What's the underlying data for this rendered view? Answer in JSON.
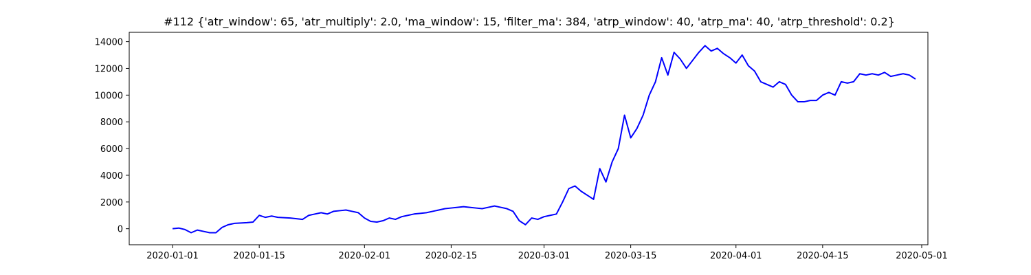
{
  "chart_data": {
    "type": "line",
    "title": "#112 {'atr_window': 65, 'atr_multiply': 2.0, 'ma_window': 15, 'filter_ma': 384, 'atrp_window': 40, 'atrp_ma': 40, 'atrp_threshold': 0.2}",
    "xlabel": "",
    "ylabel": "",
    "xlim": [
      "2019-12-25",
      "2020-05-02"
    ],
    "ylim": [
      -1200,
      14700
    ],
    "x_ticks": [
      "2020-01-01",
      "2020-01-15",
      "2020-02-01",
      "2020-02-15",
      "2020-03-01",
      "2020-03-15",
      "2020-04-01",
      "2020-04-15",
      "2020-05-01"
    ],
    "y_ticks": [
      0,
      2000,
      4000,
      6000,
      8000,
      10000,
      12000,
      14000
    ],
    "grid": false,
    "legend": "none",
    "series": [
      {
        "color": "#0000ff",
        "x": [
          "2020-01-01",
          "2020-01-02",
          "2020-01-03",
          "2020-01-04",
          "2020-01-05",
          "2020-01-06",
          "2020-01-07",
          "2020-01-08",
          "2020-01-09",
          "2020-01-10",
          "2020-01-11",
          "2020-01-13",
          "2020-01-14",
          "2020-01-15",
          "2020-01-16",
          "2020-01-17",
          "2020-01-18",
          "2020-01-20",
          "2020-01-21",
          "2020-01-22",
          "2020-01-23",
          "2020-01-24",
          "2020-01-25",
          "2020-01-26",
          "2020-01-27",
          "2020-01-28",
          "2020-01-29",
          "2020-01-30",
          "2020-01-31",
          "2020-02-01",
          "2020-02-02",
          "2020-02-03",
          "2020-02-04",
          "2020-02-05",
          "2020-02-06",
          "2020-02-07",
          "2020-02-08",
          "2020-02-09",
          "2020-02-10",
          "2020-02-11",
          "2020-02-12",
          "2020-02-13",
          "2020-02-14",
          "2020-02-15",
          "2020-02-16",
          "2020-02-17",
          "2020-02-18",
          "2020-02-19",
          "2020-02-20",
          "2020-02-21",
          "2020-02-22",
          "2020-02-23",
          "2020-02-24",
          "2020-02-25",
          "2020-02-26",
          "2020-02-27",
          "2020-02-28",
          "2020-02-29",
          "2020-03-01",
          "2020-03-02",
          "2020-03-03",
          "2020-03-04",
          "2020-03-05",
          "2020-03-06",
          "2020-03-07",
          "2020-03-08",
          "2020-03-09",
          "2020-03-10",
          "2020-03-11",
          "2020-03-12",
          "2020-03-13",
          "2020-03-14",
          "2020-03-15",
          "2020-03-16",
          "2020-03-17",
          "2020-03-18",
          "2020-03-19",
          "2020-03-20",
          "2020-03-21",
          "2020-03-22",
          "2020-03-23",
          "2020-03-24",
          "2020-03-25",
          "2020-03-26",
          "2020-03-27",
          "2020-03-28",
          "2020-03-29",
          "2020-03-30",
          "2020-03-31",
          "2020-04-01",
          "2020-04-02",
          "2020-04-03",
          "2020-04-04",
          "2020-04-05",
          "2020-04-06",
          "2020-04-07",
          "2020-04-08",
          "2020-04-09",
          "2020-04-10",
          "2020-04-11",
          "2020-04-12",
          "2020-04-13",
          "2020-04-14",
          "2020-04-15",
          "2020-04-16",
          "2020-04-17",
          "2020-04-18",
          "2020-04-19",
          "2020-04-20",
          "2020-04-21",
          "2020-04-22",
          "2020-04-23",
          "2020-04-24",
          "2020-04-25",
          "2020-04-26",
          "2020-04-27",
          "2020-04-28",
          "2020-04-29",
          "2020-04-30"
        ],
        "values": [
          0,
          50,
          -60,
          -300,
          -100,
          -200,
          -300,
          -300,
          100,
          300,
          400,
          450,
          500,
          1000,
          850,
          950,
          850,
          800,
          750,
          700,
          1000,
          1100,
          1200,
          1100,
          1300,
          1350,
          1400,
          1300,
          1200,
          800,
          550,
          500,
          600,
          800,
          700,
          900,
          1000,
          1100,
          1150,
          1200,
          1300,
          1400,
          1500,
          1550,
          1600,
          1650,
          1600,
          1550,
          1500,
          1600,
          1700,
          1600,
          1500,
          1300,
          600,
          300,
          800,
          700,
          900,
          1000,
          1100,
          2000,
          3000,
          3200,
          2800,
          2500,
          2200,
          4500,
          3500,
          5000,
          6000,
          8500,
          6800,
          7500,
          8500,
          10000,
          11000,
          12800,
          11500,
          13200,
          12700,
          12000,
          12600,
          13200,
          13700,
          13300,
          13500,
          13100,
          12800,
          12400,
          13000,
          12200,
          11800,
          11000,
          10800,
          10600,
          11000,
          10800,
          10000,
          9500,
          9500,
          9600,
          9600,
          10000,
          10200,
          10000,
          11000,
          10900,
          11000,
          11600,
          11500,
          11600,
          11500,
          11700,
          11400,
          11500,
          11600,
          11500,
          11200
        ]
      }
    ]
  }
}
